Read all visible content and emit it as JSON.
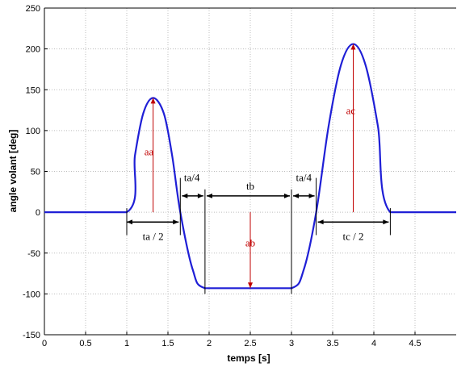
{
  "chart_data": {
    "type": "line",
    "xlabel": "temps [s]",
    "ylabel": "angle volant [deg]",
    "xlim": [
      0,
      5
    ],
    "ylim": [
      -150,
      250
    ],
    "grid": true,
    "x_ticks": [
      "0",
      "0.5",
      "1",
      "1.5",
      "2",
      "2.5",
      "3",
      "3.5",
      "4",
      "4.5"
    ],
    "y_ticks": [
      "-150",
      "-100",
      "-50",
      "0",
      "50",
      "100",
      "150",
      "200",
      "250"
    ],
    "series": [
      {
        "color": "#1f1fd6",
        "x": [
          0,
          1.0,
          1.1,
          1.2,
          1.32,
          1.45,
          1.55,
          1.65,
          1.8,
          1.95,
          2.5,
          3.0,
          3.15,
          3.3,
          3.45,
          3.6,
          3.75,
          3.9,
          4.05,
          4.2,
          5.0
        ],
        "y": [
          0,
          0,
          70,
          121,
          140,
          121,
          70,
          0,
          -70,
          -93,
          -93,
          -93,
          -70,
          0,
          105,
          180,
          206,
          180,
          105,
          0,
          0
        ]
      }
    ],
    "annotations": {
      "aa": "aa",
      "ab": "ab",
      "ac": "ac",
      "tb": "tb",
      "ta_half": "ta / 2",
      "ta_quarter_left": "ta/4",
      "ta_quarter_right": "ta/4",
      "tc_half": "tc / 2"
    },
    "colors": {
      "curve": "#1f1fd6",
      "annotation": "#c00000",
      "dimension": "#000000"
    }
  }
}
